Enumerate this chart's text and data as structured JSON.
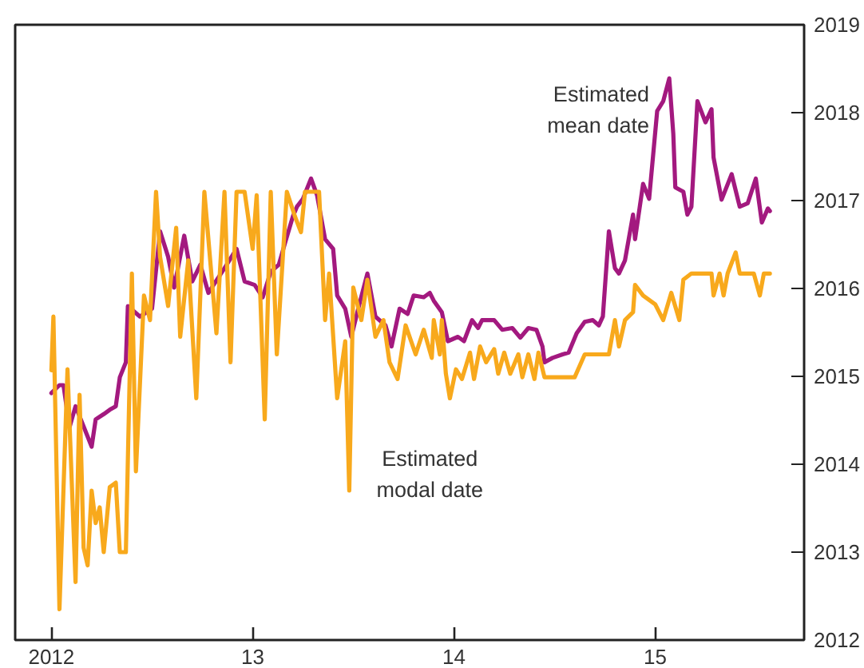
{
  "chart_data": {
    "type": "line",
    "xlim": [
      2011.82,
      2015.74
    ],
    "ylim": [
      2012,
      2019
    ],
    "xticks": [
      {
        "value": 2012,
        "label": "2012"
      },
      {
        "value": 2013,
        "label": "13"
      },
      {
        "value": 2014,
        "label": "14"
      },
      {
        "value": 2015,
        "label": "15"
      }
    ],
    "yticks": [
      2012,
      2013,
      2014,
      2015,
      2016,
      2017,
      2018,
      2019
    ],
    "series": [
      {
        "name": "Estimated mean date",
        "color": "#a3197f",
        "x": [
          2012.0,
          2012.04,
          2012.06,
          2012.09,
          2012.12,
          2012.2,
          2012.22,
          2012.26,
          2012.29,
          2012.32,
          2012.34,
          2012.37,
          2012.38,
          2012.44,
          2012.5,
          2012.54,
          2012.58,
          2012.61,
          2012.66,
          2012.7,
          2012.74,
          2012.78,
          2012.86,
          2012.92,
          2012.96,
          2013.01,
          2013.05,
          2013.09,
          2013.13,
          2013.16,
          2013.2,
          2013.22,
          2013.25,
          2013.29,
          2013.32,
          2013.36,
          2013.4,
          2013.42,
          2013.46,
          2013.49,
          2013.53,
          2013.57,
          2013.61,
          2013.66,
          2013.69,
          2013.73,
          2013.77,
          2013.8,
          2013.85,
          2013.88,
          2013.9,
          2013.94,
          2013.97,
          2014.02,
          2014.05,
          2014.09,
          2014.12,
          2014.14,
          2014.2,
          2014.24,
          2014.29,
          2014.33,
          2014.37,
          2014.41,
          2014.44,
          2014.45,
          2014.49,
          2014.54,
          2014.57,
          2014.61,
          2014.65,
          2014.69,
          2014.72,
          2014.74,
          2014.77,
          2014.8,
          2014.82,
          2014.85,
          2014.89,
          2014.9,
          2014.94,
          2014.97,
          2015.01,
          2015.04,
          2015.07,
          2015.09,
          2015.1,
          2015.14,
          2015.16,
          2015.18,
          2015.21,
          2015.25,
          2015.28,
          2015.29,
          2015.33,
          2015.38,
          2015.42,
          2015.46,
          2015.5,
          2015.53,
          2015.56,
          2015.57
        ],
        "values": [
          2014.81,
          2014.9,
          2014.9,
          2014.42,
          2014.66,
          2014.2,
          2014.51,
          2014.57,
          2014.62,
          2014.66,
          2014.99,
          2015.16,
          2015.8,
          2015.68,
          2015.77,
          2016.65,
          2016.36,
          2016.01,
          2016.6,
          2016.08,
          2016.27,
          2015.95,
          2016.23,
          2016.45,
          2016.08,
          2016.04,
          2015.9,
          2016.19,
          2016.27,
          2016.51,
          2016.82,
          2016.93,
          2017.02,
          2017.25,
          2017.06,
          2016.56,
          2016.45,
          2015.92,
          2015.77,
          2015.45,
          2015.82,
          2016.17,
          2015.68,
          2015.58,
          2015.34,
          2015.77,
          2015.71,
          2015.92,
          2015.9,
          2015.95,
          2015.86,
          2015.73,
          2015.4,
          2015.45,
          2015.4,
          2015.64,
          2015.55,
          2015.64,
          2015.64,
          2015.53,
          2015.55,
          2015.44,
          2015.55,
          2015.53,
          2015.34,
          2015.16,
          2015.21,
          2015.25,
          2015.27,
          2015.49,
          2015.62,
          2015.64,
          2015.58,
          2015.68,
          2016.65,
          2016.23,
          2016.17,
          2016.32,
          2016.84,
          2016.56,
          2017.19,
          2017.02,
          2018.02,
          2018.13,
          2018.39,
          2017.76,
          2017.15,
          2017.1,
          2016.84,
          2016.93,
          2018.13,
          2017.89,
          2018.04,
          2017.49,
          2017.01,
          2017.3,
          2016.93,
          2016.97,
          2017.25,
          2016.75,
          2016.91,
          2016.88
        ]
      },
      {
        "name": "Estimated modal date",
        "color": "#f8a91c",
        "x": [
          2012.0,
          2012.01,
          2012.04,
          2012.08,
          2012.12,
          2012.14,
          2012.16,
          2012.18,
          2012.2,
          2012.22,
          2012.24,
          2012.26,
          2012.29,
          2012.32,
          2012.34,
          2012.37,
          2012.4,
          2012.42,
          2012.46,
          2012.49,
          2012.52,
          2012.54,
          2012.58,
          2012.62,
          2012.64,
          2012.68,
          2012.72,
          2012.76,
          2012.82,
          2012.86,
          2012.89,
          2012.92,
          2012.96,
          2013.0,
          2013.02,
          2013.06,
          2013.09,
          2013.12,
          2013.17,
          2013.21,
          2013.24,
          2013.26,
          2013.33,
          2013.36,
          2013.38,
          2013.42,
          2013.46,
          2013.48,
          2013.5,
          2013.54,
          2013.57,
          2013.61,
          2013.65,
          2013.68,
          2013.72,
          2013.76,
          2013.81,
          2013.85,
          2013.89,
          2013.9,
          2013.93,
          2013.94,
          2013.96,
          2013.98,
          2014.01,
          2014.04,
          2014.08,
          2014.1,
          2014.13,
          2014.16,
          2014.2,
          2014.22,
          2014.25,
          2014.28,
          2014.32,
          2014.34,
          2014.37,
          2014.4,
          2014.42,
          2014.45,
          2014.6,
          2014.65,
          2014.77,
          2014.8,
          2014.82,
          2014.85,
          2014.89,
          2014.9,
          2014.94,
          2015.0,
          2015.04,
          2015.08,
          2015.12,
          2015.14,
          2015.18,
          2015.28,
          2015.29,
          2015.32,
          2015.34,
          2015.36,
          2015.4,
          2015.42,
          2015.49,
          2015.52,
          2015.54,
          2015.57
        ],
        "values": [
          2015.07,
          2015.68,
          2012.35,
          2015.08,
          2012.66,
          2014.79,
          2013.05,
          2012.85,
          2013.7,
          2013.33,
          2013.51,
          2013.0,
          2013.74,
          2013.79,
          2013.0,
          2013.0,
          2016.17,
          2013.92,
          2015.92,
          2015.64,
          2017.1,
          2016.36,
          2015.8,
          2016.69,
          2015.45,
          2016.32,
          2014.75,
          2017.1,
          2015.49,
          2017.1,
          2015.16,
          2017.1,
          2017.1,
          2016.45,
          2017.06,
          2014.51,
          2017.1,
          2015.25,
          2017.1,
          2016.82,
          2016.64,
          2017.1,
          2017.1,
          2015.64,
          2016.17,
          2014.75,
          2015.4,
          2013.7,
          2016.01,
          2015.64,
          2016.1,
          2015.45,
          2015.64,
          2015.16,
          2014.97,
          2015.58,
          2015.25,
          2015.53,
          2015.21,
          2015.64,
          2015.25,
          2015.64,
          2015.03,
          2014.75,
          2015.08,
          2014.97,
          2015.27,
          2014.97,
          2015.34,
          2015.16,
          2015.31,
          2015.03,
          2015.27,
          2015.03,
          2015.25,
          2014.99,
          2015.25,
          2014.97,
          2015.27,
          2014.99,
          2014.99,
          2015.25,
          2015.25,
          2015.64,
          2015.34,
          2015.64,
          2015.73,
          2016.04,
          2015.92,
          2015.82,
          2015.64,
          2015.95,
          2015.64,
          2016.1,
          2016.17,
          2016.17,
          2015.92,
          2016.17,
          2015.92,
          2016.17,
          2016.41,
          2016.17,
          2016.17,
          2015.92,
          2016.17,
          2016.17
        ]
      }
    ]
  }
}
